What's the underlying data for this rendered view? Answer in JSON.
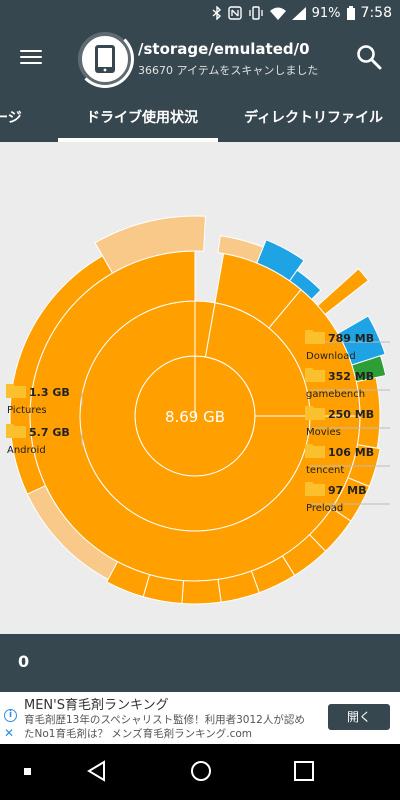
{
  "status_bar": {
    "battery": "91%",
    "time": "7:58"
  },
  "app_bar": {
    "path": "/storage/emulated/0",
    "subtitle": "36670 アイテムをスキャンしました"
  },
  "tabs": [
    {
      "label": "ージ"
    },
    {
      "label": "ドライブ使用状況"
    },
    {
      "label": "ディレクトリファイル"
    }
  ],
  "chart": {
    "total": "8.69 GB",
    "labels": [
      {
        "size": "1.3 GB",
        "name": "Pictures"
      },
      {
        "size": "5.7 GB",
        "name": "Android"
      },
      {
        "size": "789 MB",
        "name": "Download"
      },
      {
        "size": "352 MB",
        "name": "gamebench"
      },
      {
        "size": "250 MB",
        "name": "Movies"
      },
      {
        "size": "106 MB",
        "name": "tencent"
      },
      {
        "size": "97 MB",
        "name": "Preload"
      }
    ]
  },
  "selection": {
    "count": "0"
  },
  "ad": {
    "title": "MEN'S育毛剤ランキング",
    "line1": "育毛剤歴13年のスペシャリスト監修！利用者3012人が認め",
    "line2": "たNo1育毛剤は？ メンズ育毛剤ランキング.com",
    "button": "開く"
  },
  "colors": {
    "primary": "#37474f",
    "orange": "#ffa000",
    "light_orange": "#f9c98a",
    "blue": "#1ea4e4",
    "green": "#2e9e36"
  }
}
